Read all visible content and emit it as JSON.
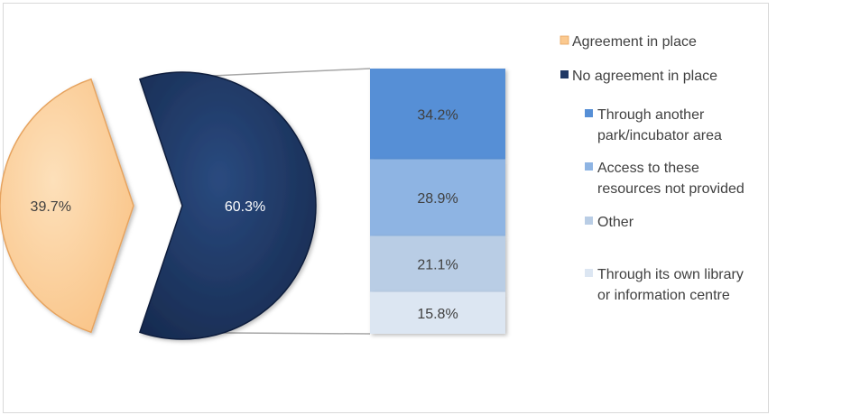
{
  "chart_data": {
    "type": "bar-of-pie",
    "pie": {
      "categories": [
        "Agreement in place",
        "No agreement in place"
      ],
      "values": [
        39.7,
        60.3
      ],
      "labels": [
        "39.7%",
        "60.3%"
      ],
      "colors": [
        "#fbc98f",
        "#1f3864"
      ]
    },
    "breakdown": {
      "parent": "No agreement in place",
      "categories": [
        "Through another park/incubator area",
        "Access to these resources not provided",
        "Other",
        "Through its own library or information centre"
      ],
      "values": [
        34.2,
        28.9,
        21.1,
        15.8
      ],
      "labels": [
        "34.2%",
        "28.9%",
        "21.1%",
        "15.8%"
      ],
      "colors": [
        "#568fd6",
        "#8eb4e3",
        "#b9cde5",
        "#dce6f2"
      ]
    },
    "legend": {
      "position": "right",
      "entries": [
        {
          "label_lines": [
            "Agreement in place"
          ],
          "color": "#fbc98f"
        },
        {
          "label_lines": [
            "No agreement in place"
          ],
          "color": "#1f3864"
        },
        {
          "label_lines": [
            "Through another",
            "park/incubator area"
          ],
          "color": "#568fd6"
        },
        {
          "label_lines": [
            "Access to these",
            "resources not provided"
          ],
          "color": "#8eb4e3"
        },
        {
          "label_lines": [
            "Other"
          ],
          "color": "#b9cde5"
        },
        {
          "label_lines": [
            "Through its own library",
            "or information centre"
          ],
          "color": "#dce6f2"
        }
      ]
    },
    "title": "",
    "grid": false
  }
}
